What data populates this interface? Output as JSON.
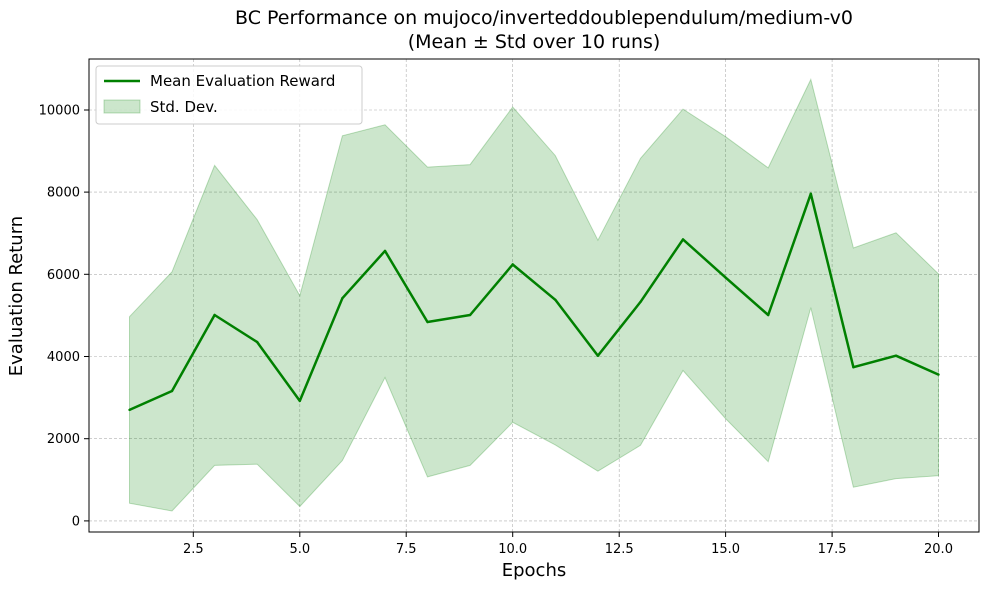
{
  "chart_data": {
    "type": "line",
    "title": "BC Performance on mujoco/inverteddoublependulum/medium-v0",
    "subtitle": "(Mean ± Std over 10 runs)",
    "xlabel": "Epochs",
    "ylabel": "Evaluation Return",
    "xlim": [
      0.05,
      20.95
    ],
    "ylim": [
      -270,
      11240
    ],
    "xticks": [
      2.5,
      5.0,
      7.5,
      10.0,
      12.5,
      15.0,
      17.5,
      20.0
    ],
    "xtick_labels": [
      "2.5",
      "5.0",
      "7.5",
      "10.0",
      "12.5",
      "15.0",
      "17.5",
      "20.0"
    ],
    "yticks": [
      0,
      2000,
      4000,
      6000,
      8000,
      10000
    ],
    "ytick_labels": [
      "0",
      "2000",
      "4000",
      "6000",
      "8000",
      "10000"
    ],
    "grid": true,
    "legend_position": "top-left",
    "x": [
      1,
      2,
      3,
      4,
      5,
      6,
      7,
      8,
      9,
      10,
      11,
      12,
      13,
      14,
      15,
      16,
      17,
      18,
      19,
      20
    ],
    "series": [
      {
        "name": "Mean Evaluation Reward",
        "color": "#008000",
        "values": [
          2700,
          3160,
          5010,
          4350,
          2920,
          5420,
          6570,
          4840,
          5010,
          6240,
          5380,
          4020,
          5330,
          6850,
          5920,
          5010,
          7960,
          3740,
          4020,
          3560
        ]
      }
    ],
    "band": {
      "name": "Std. Dev.",
      "color": "#008000",
      "opacity": 0.2,
      "upper": [
        4970,
        6060,
        8650,
        7330,
        5480,
        9370,
        9640,
        8610,
        8670,
        10070,
        8890,
        6830,
        8820,
        10020,
        9350,
        8590,
        10740,
        6640,
        7010,
        6010
      ],
      "lower": [
        430,
        240,
        1350,
        1380,
        350,
        1470,
        3490,
        1070,
        1350,
        2400,
        1850,
        1210,
        1840,
        3660,
        2490,
        1440,
        5190,
        820,
        1030,
        1100
      ]
    }
  }
}
